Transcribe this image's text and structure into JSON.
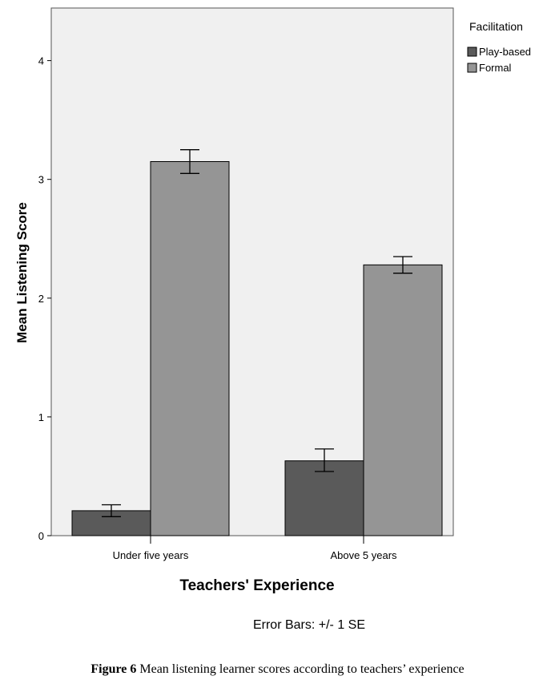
{
  "chart_data": {
    "type": "bar",
    "title": "",
    "xlabel": "Teachers' Experience",
    "ylabel": "Mean Listening Score",
    "ylim": [
      0,
      4.4
    ],
    "yticks": [
      "0",
      "1",
      "2",
      "3",
      "4"
    ],
    "categories": [
      "Under five years",
      "Above 5 years"
    ],
    "legend_title": "Facilitation",
    "legend_position": "right",
    "series": [
      {
        "name": "Play-based",
        "color": "#5a5a5a",
        "values": [
          0.21,
          0.63
        ],
        "err_low": [
          0.16,
          0.54
        ],
        "err_high": [
          0.26,
          0.73
        ]
      },
      {
        "name": "Formal",
        "color": "#959595",
        "values": [
          3.15,
          2.28
        ],
        "err_low": [
          3.05,
          2.21
        ],
        "err_high": [
          3.25,
          2.35
        ]
      }
    ],
    "note": "Error Bars: +/- 1 SE",
    "grid": false
  },
  "caption": {
    "label": "Figure 6",
    "text": " Mean listening learner scores according to teachers’ experience"
  }
}
